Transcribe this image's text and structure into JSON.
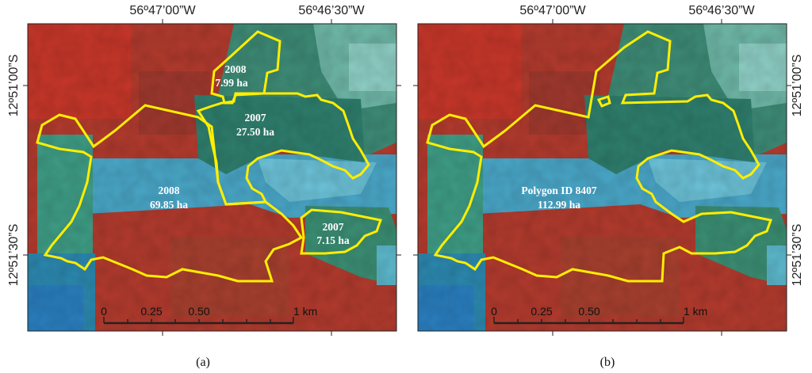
{
  "colors": {
    "polygon": "#ffee00",
    "vegetation_red": "#b53a2c",
    "water_blue": "#2f9fd6",
    "regrowth_green": "#3f9e86",
    "label_text": "#ffffff"
  },
  "panels": [
    {
      "id": "a",
      "caption": "(a)",
      "lon_labels": [
        "56º47’00”W",
        "56º46’30”W"
      ],
      "lat_labels": [
        "12º51’00”S",
        "12º51’30”S"
      ],
      "polygon_labels": [
        {
          "year": "2008",
          "area": "7.99 ha"
        },
        {
          "year": "2007",
          "area": "27.50 ha"
        },
        {
          "year": "2008",
          "area": "69.85 ha"
        },
        {
          "year": "2007",
          "area": "7.15 ha"
        }
      ],
      "scale_bar": {
        "ticks": [
          "0",
          "0.25",
          "0.50",
          "1 km"
        ]
      }
    },
    {
      "id": "b",
      "caption": "(b)",
      "lon_labels": [
        "56º47’00”W",
        "56º46’30”W"
      ],
      "lat_labels": [
        "12º51’00”S",
        "12º51’30”S"
      ],
      "polygon_labels": [
        {
          "id_line": "Polygon ID 8407",
          "area": "112.99 ha"
        }
      ],
      "scale_bar": {
        "ticks": [
          "0",
          "0.25",
          "0.50",
          "1 km"
        ]
      }
    }
  ]
}
